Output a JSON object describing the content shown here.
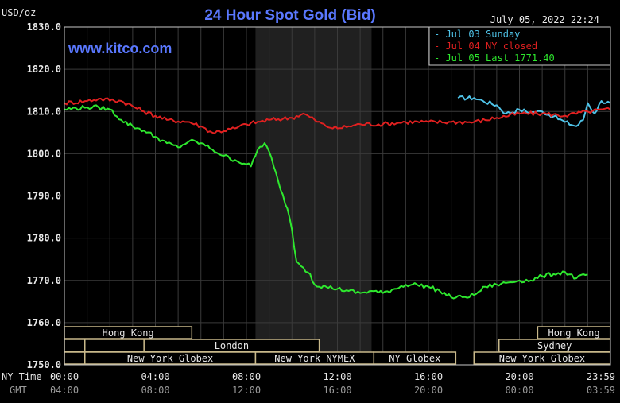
{
  "chart_data": {
    "type": "line",
    "title": "24 Hour Spot Gold (Bid)",
    "ylabel": "USD/oz",
    "watermark": "www.kitco.com",
    "date_stamp": "July 05, 2022 22:24",
    "ylim": [
      1750,
      1830
    ],
    "y_ticks": [
      "1830.0",
      "1820.0",
      "1810.0",
      "1800.0",
      "1790.0",
      "1780.0",
      "1770.0",
      "1760.0",
      "1750.0"
    ],
    "x_ticks_ny": [
      "00:00",
      "04:00",
      "08:00",
      "12:00",
      "16:00",
      "20:00",
      "23:59"
    ],
    "x_ticks_gmt": [
      "04:00",
      "08:00",
      "12:00",
      "16:00",
      "20:00",
      "00:00",
      "03:59"
    ],
    "x_label_ny": "NY Time",
    "x_label_gmt": "GMT",
    "grid": true,
    "legend_position": "top-right",
    "highlight_band_hours": [
      8.4,
      13.5
    ],
    "series": [
      {
        "name": "Jul 03 Sunday",
        "color": "#4fc3e8",
        "x": [
          17.3,
          18.0,
          18.4,
          19.0,
          19.4,
          20.0,
          20.5,
          21.0,
          21.5,
          22.0,
          22.5,
          22.8,
          23.0,
          23.3,
          23.6,
          23.99
        ],
        "values": [
          1813.2,
          1813.2,
          1812.5,
          1811.5,
          1809.5,
          1810.4,
          1809.8,
          1810.0,
          1808.8,
          1807.5,
          1806.5,
          1808.0,
          1812.0,
          1809.5,
          1812.5,
          1812.0
        ]
      },
      {
        "name": "Jul 04 NY closed",
        "color": "#e02020",
        "x": [
          0.0,
          1.0,
          1.5,
          2.5,
          3.5,
          4.5,
          5.5,
          6.0,
          6.5,
          7.5,
          8.0,
          9.0,
          10.0,
          10.5,
          11.0,
          11.5,
          12.0,
          12.5,
          13.0,
          14.0,
          15.0,
          16.0,
          17.0,
          18.0,
          19.0,
          20.0,
          21.0,
          22.0,
          23.0,
          23.99
        ],
        "values": [
          1812.0,
          1812.5,
          1813.0,
          1812.5,
          1810.0,
          1808.0,
          1807.5,
          1806.5,
          1805.0,
          1806.0,
          1807.0,
          1808.0,
          1808.5,
          1809.5,
          1808.0,
          1806.5,
          1806.0,
          1806.5,
          1807.0,
          1807.0,
          1807.5,
          1807.5,
          1807.5,
          1807.5,
          1808.5,
          1809.5,
          1809.5,
          1809.0,
          1810.0,
          1810.5
        ]
      },
      {
        "name": "Jul 05 Last 1771.40",
        "color": "#2ee82e",
        "x": [
          0.0,
          1.0,
          1.5,
          2.0,
          2.5,
          3.0,
          3.5,
          4.0,
          4.5,
          5.0,
          5.5,
          6.0,
          6.5,
          7.0,
          7.5,
          8.0,
          8.2,
          8.5,
          8.8,
          9.0,
          9.2,
          9.5,
          9.8,
          10.0,
          10.2,
          10.5,
          10.8,
          11.0,
          11.5,
          12.0,
          12.5,
          13.0,
          13.5,
          14.0,
          14.5,
          15.0,
          15.5,
          16.0,
          16.5,
          17.0,
          17.5,
          18.0,
          18.5,
          19.0,
          19.5,
          20.0,
          20.5,
          21.0,
          21.5,
          22.0,
          22.5,
          23.0
        ],
        "values": [
          1810.5,
          1811.0,
          1811.0,
          1810.5,
          1808.0,
          1806.5,
          1805.5,
          1804.0,
          1802.5,
          1801.5,
          1803.0,
          1802.5,
          1801.0,
          1799.5,
          1798.5,
          1797.5,
          1797.0,
          1801.0,
          1802.5,
          1800.5,
          1797.0,
          1791.5,
          1787.0,
          1782.0,
          1774.5,
          1773.0,
          1771.5,
          1769.0,
          1768.5,
          1768.0,
          1767.5,
          1767.0,
          1767.5,
          1767.0,
          1768.0,
          1769.0,
          1769.0,
          1768.5,
          1767.5,
          1766.0,
          1766.0,
          1766.5,
          1768.5,
          1769.0,
          1769.5,
          1770.0,
          1770.0,
          1771.0,
          1771.5,
          1772.0,
          1770.5,
          1771.4
        ]
      }
    ],
    "session_bars": [
      {
        "row": 0,
        "start": 0.0,
        "end": 5.6,
        "label": "Hong Kong"
      },
      {
        "row": 0,
        "start": 20.8,
        "end": 23.99,
        "label": "Hong Kong"
      },
      {
        "row": 1,
        "start": 0.0,
        "end": 0.9,
        "label": ""
      },
      {
        "row": 1,
        "start": 0.9,
        "end": 3.5,
        "label": ""
      },
      {
        "row": 1,
        "start": 3.5,
        "end": 11.2,
        "label": "London"
      },
      {
        "row": 1,
        "start": 19.1,
        "end": 23.99,
        "label": "Sydney"
      },
      {
        "row": 2,
        "start": 0.0,
        "end": 0.9,
        "label": ""
      },
      {
        "row": 2,
        "start": 0.9,
        "end": 8.4,
        "label": "New York Globex"
      },
      {
        "row": 2,
        "start": 8.4,
        "end": 13.6,
        "label": "New York NYMEX"
      },
      {
        "row": 2,
        "start": 13.6,
        "end": 17.2,
        "label": "NY Globex"
      },
      {
        "row": 2,
        "start": 18.0,
        "end": 23.99,
        "label": "New York Globex"
      }
    ]
  }
}
